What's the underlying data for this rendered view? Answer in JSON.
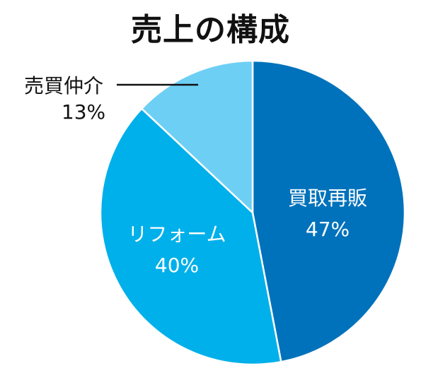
{
  "chart_data": {
    "type": "pie",
    "title": "売上の構成",
    "slices": [
      {
        "label": "買取再販",
        "value": 47,
        "value_label": "47%",
        "color": "#0072bb"
      },
      {
        "label": "リフォーム",
        "value": 40,
        "value_label": "40%",
        "color": "#00b0ea"
      },
      {
        "label": "売買仲介",
        "value": 13,
        "value_label": "13%",
        "color": "#6ecff5"
      }
    ],
    "label_colors": {
      "inside": "#ffffff",
      "outside": "#111111"
    },
    "slice_order": "clockwise from 12 o'clock"
  }
}
